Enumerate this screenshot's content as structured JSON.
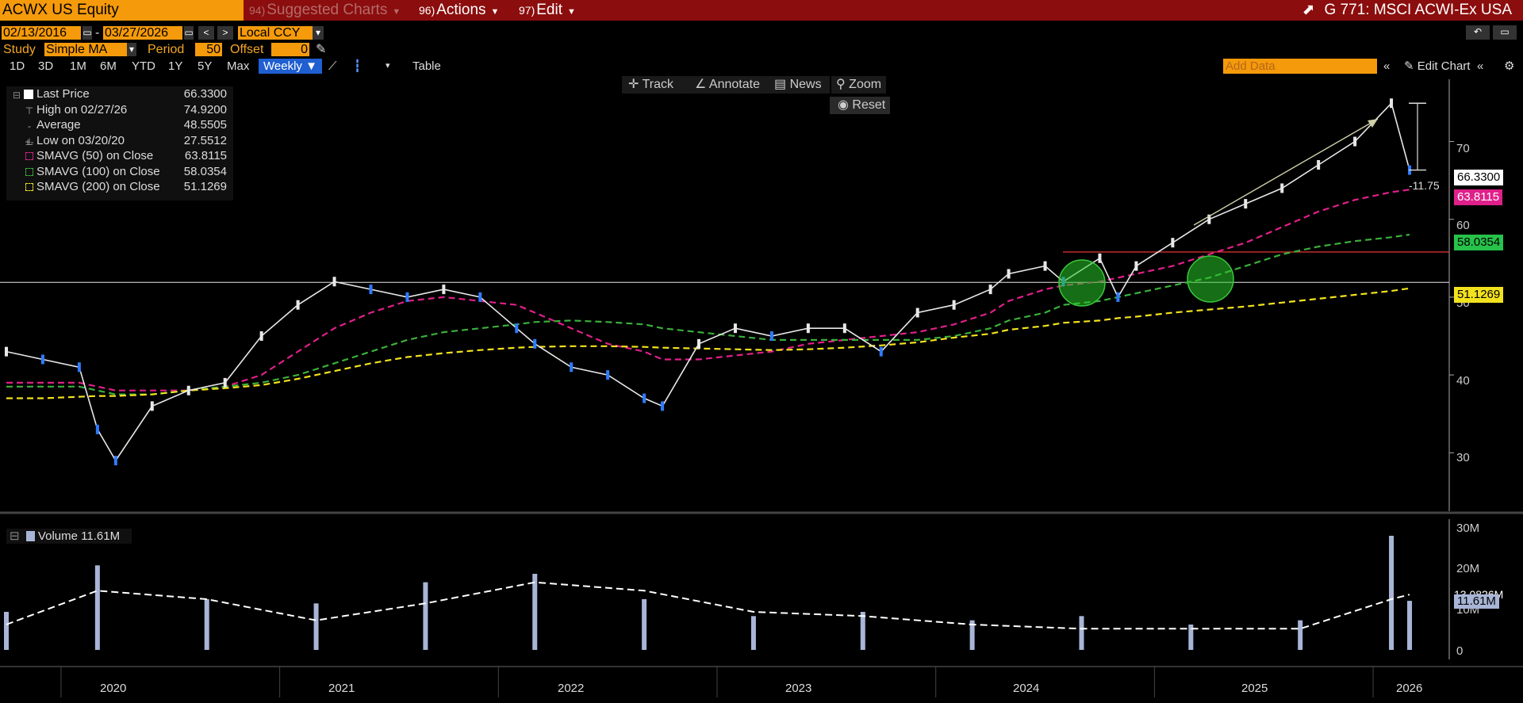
{
  "header": {
    "security": "ACWX US Equity",
    "menus": [
      {
        "num": "94)",
        "label": "Suggested Charts",
        "dim": true
      },
      {
        "num": "96)",
        "label": "Actions",
        "dim": false
      },
      {
        "num": "97)",
        "label": "Edit",
        "dim": false
      }
    ],
    "chart_title": "G 771: MSCI ACWI-Ex USA"
  },
  "controls": {
    "start_date": "02/13/2016",
    "end_date": "03/27/2026",
    "currency": "Local CCY",
    "study_label": "Study",
    "study_value": "Simple MA",
    "period_label": "Period",
    "period_value": "50",
    "offset_label": "Offset",
    "offset_value": "0",
    "timeframes": [
      "1D",
      "3D",
      "1M",
      "6M",
      "YTD",
      "1Y",
      "5Y",
      "Max"
    ],
    "frequency": "Weekly",
    "table_label": "Table",
    "add_data_placeholder": "Add Data",
    "edit_chart_label": "Edit Chart"
  },
  "chart_tools": {
    "track": "Track",
    "annotate": "Annotate",
    "news": "News",
    "zoom": "Zoom",
    "reset": "Reset"
  },
  "legend": [
    {
      "name": "Last Price",
      "value": "66.3300",
      "color": "#ffffff"
    },
    {
      "name": "High on 02/27/26",
      "value": "74.9200",
      "color": "#aaaaaa"
    },
    {
      "name": "Average",
      "value": "48.5505",
      "color": "#aaaaaa"
    },
    {
      "name": "Low on 03/20/20",
      "value": "27.5512",
      "color": "#aaaaaa"
    },
    {
      "name": "SMAVG (50)  on Close",
      "value": "63.8115",
      "color": "#e0208a"
    },
    {
      "name": "SMAVG (100)  on Close",
      "value": "58.0354",
      "color": "#3ab03a"
    },
    {
      "name": "SMAVG (200)  on Close",
      "value": "51.1269",
      "color": "#f2e21e"
    }
  ],
  "annotations": {
    "drop_label": "-11.75"
  },
  "volume_legend": {
    "label": "Volume",
    "value": "11.61M"
  },
  "volume_axis": {
    "ticks": [
      "30M",
      "20M",
      "10M",
      "0"
    ],
    "avg_tag": "13.0826M",
    "last_tag": "11.61M"
  },
  "price_tags": {
    "last": {
      "text": "66.3300",
      "bg": "#ffffff"
    },
    "sma50": {
      "text": "63.8115",
      "bg": "#e0208a"
    },
    "sma100": {
      "text": "58.0354",
      "bg": "#27c24a"
    },
    "sma200": {
      "text": "51.1269",
      "bg": "#f2e21e"
    }
  },
  "chart_data": {
    "type": "line",
    "price_axis": {
      "ticks": [
        70,
        60,
        50,
        40,
        30
      ],
      "ylim": [
        23,
        78
      ]
    },
    "x": [
      "2019-10",
      "2019-12",
      "2020-02",
      "2020-03",
      "2020-04",
      "2020-06",
      "2020-08",
      "2020-10",
      "2020-12",
      "2021-02",
      "2021-04",
      "2021-06",
      "2021-08",
      "2021-10",
      "2021-12",
      "2022-02",
      "2022-03",
      "2022-05",
      "2022-07",
      "2022-09",
      "2022-10",
      "2022-12",
      "2023-02",
      "2023-04",
      "2023-06",
      "2023-08",
      "2023-10",
      "2023-12",
      "2024-02",
      "2024-04",
      "2024-05",
      "2024-07",
      "2024-08",
      "2024-10",
      "2024-11",
      "2024-12",
      "2025-02",
      "2025-04",
      "2025-06",
      "2025-08",
      "2025-10",
      "2025-12",
      "2026-02",
      "2026-03"
    ],
    "series": [
      {
        "name": "Last Price",
        "values": [
          43,
          42,
          41,
          33,
          29,
          36,
          38,
          39,
          45,
          49,
          52,
          51,
          50,
          51,
          50,
          46,
          44,
          41,
          40,
          37,
          36,
          44,
          46,
          45,
          46,
          46,
          43,
          48,
          49,
          51,
          53,
          54,
          52,
          55,
          50,
          54,
          57,
          60,
          62,
          64,
          67,
          70,
          74.92,
          66.33
        ]
      },
      {
        "name": "SMAVG (50)  on Close",
        "values": [
          39,
          39,
          39,
          38.5,
          38,
          38,
          38,
          38.5,
          40,
          43,
          46,
          48,
          49.5,
          50,
          49.5,
          49,
          48,
          46,
          44,
          43,
          42,
          42,
          42.5,
          43,
          44,
          44.5,
          45,
          45.5,
          46.5,
          48,
          49.5,
          51,
          51.5,
          52,
          52.5,
          53,
          54,
          55.5,
          57,
          59,
          61,
          62.5,
          63.5,
          63.8115
        ]
      },
      {
        "name": "SMAVG (100)  on Close",
        "values": [
          38.5,
          38.5,
          38.5,
          38,
          37.5,
          37.5,
          38,
          38.5,
          39,
          40,
          41.5,
          43,
          44.5,
          45.5,
          46,
          46.5,
          46.8,
          47,
          46.8,
          46.5,
          46,
          45.5,
          45,
          44.5,
          44.5,
          44.5,
          44.5,
          44.5,
          45,
          46,
          47,
          48,
          49,
          49.5,
          50,
          50.5,
          51.5,
          52.5,
          54,
          55.5,
          56.5,
          57.2,
          57.7,
          58.0354
        ]
      },
      {
        "name": "SMAVG (200)  on Close",
        "values": [
          37,
          37,
          37.2,
          37.3,
          37.3,
          37.5,
          38,
          38.3,
          38.7,
          39.5,
          40.5,
          41.5,
          42.3,
          42.8,
          43.2,
          43.5,
          43.6,
          43.7,
          43.7,
          43.6,
          43.5,
          43.4,
          43.3,
          43.2,
          43.3,
          43.5,
          43.8,
          44.2,
          44.8,
          45.3,
          45.8,
          46.3,
          46.7,
          47,
          47.3,
          47.5,
          48,
          48.4,
          48.8,
          49.3,
          49.8,
          50.3,
          50.8,
          51.1269
        ]
      }
    ],
    "x_labels": [
      "2020",
      "2021",
      "2022",
      "2023",
      "2024",
      "2025",
      "2026"
    ],
    "reference_levels": [
      51.9,
      55.8
    ],
    "volume": {
      "ylim": [
        0,
        30
      ],
      "x": [
        "2019-10",
        "2020-03",
        "2020-09",
        "2021-03",
        "2021-09",
        "2022-03",
        "2022-09",
        "2023-03",
        "2023-09",
        "2024-03",
        "2024-09",
        "2025-03",
        "2025-09",
        "2026-02",
        "2026-03"
      ],
      "values": [
        9,
        20,
        12,
        11,
        16,
        18,
        12,
        8,
        9,
        7,
        8,
        6,
        7,
        27,
        11.61
      ],
      "avg_values": [
        6,
        14,
        12,
        7,
        11,
        16,
        14,
        9,
        8,
        6,
        5,
        5,
        5,
        12,
        13.0826
      ]
    }
  }
}
